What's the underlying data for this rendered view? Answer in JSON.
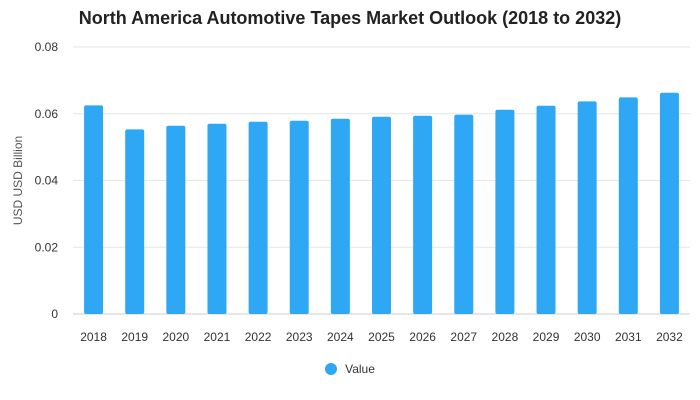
{
  "chart_data": {
    "type": "bar",
    "title": "North America Automotive Tapes Market Outlook (2018 to 2032)",
    "xlabel": "",
    "ylabel": "USD USD Billion",
    "ylim": [
      0,
      0.08
    ],
    "yticks": [
      "0",
      "0.02",
      "0.04",
      "0.06",
      "0.08"
    ],
    "categories": [
      "2018",
      "2019",
      "2020",
      "2021",
      "2022",
      "2023",
      "2024",
      "2025",
      "2026",
      "2027",
      "2028",
      "2029",
      "2030",
      "2031",
      "2032"
    ],
    "series": [
      {
        "name": "Value",
        "color": "#2ea8f5",
        "values": [
          0.0625,
          0.0553,
          0.0564,
          0.057,
          0.0576,
          0.0579,
          0.0585,
          0.0591,
          0.0594,
          0.0597,
          0.0612,
          0.0624,
          0.0637,
          0.0649,
          0.0663
        ]
      }
    ],
    "grid": true,
    "legend_position": "bottom-center"
  }
}
